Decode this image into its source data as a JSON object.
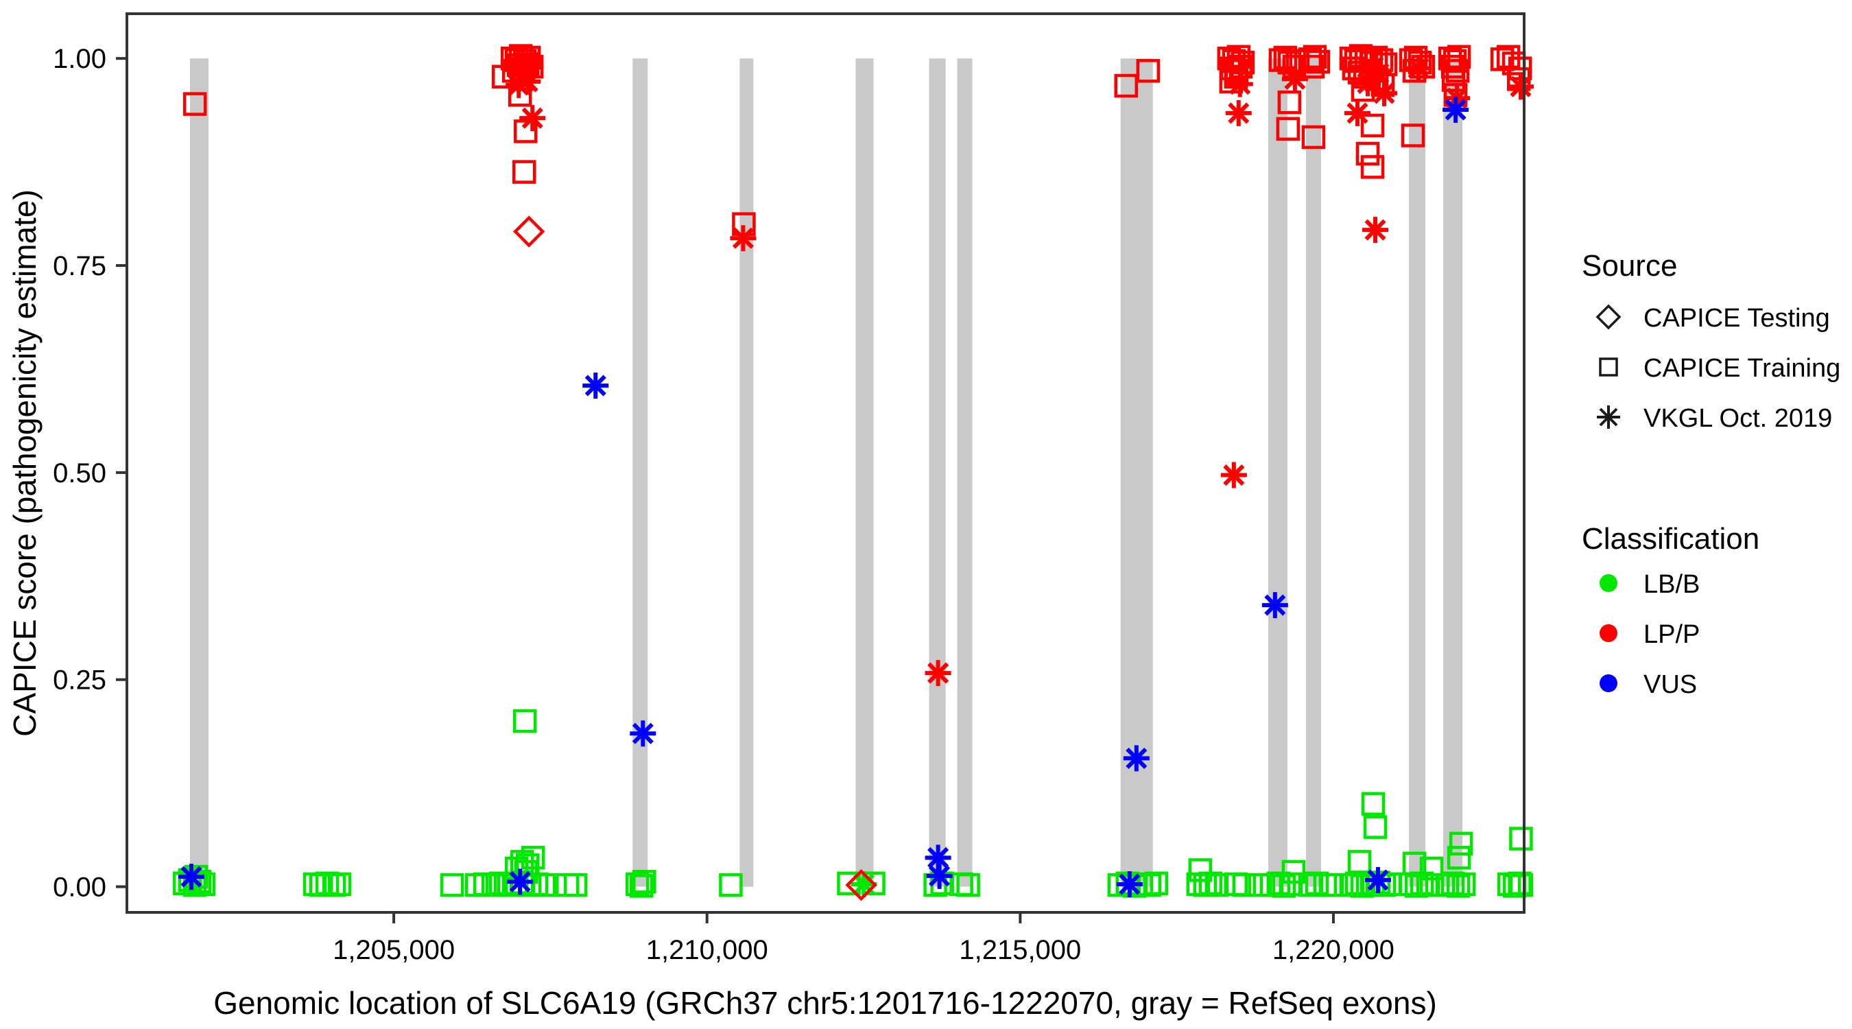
{
  "axes": {
    "x": {
      "title": "Genomic location of SLC6A19 (GRCh37 chr5:1201716-1222070, gray = RefSeq exons)",
      "domain": [
        1200739,
        1223045
      ],
      "ticks": [
        {
          "value": 1205000,
          "label": "1,205,000"
        },
        {
          "value": 1210000,
          "label": "1,210,000"
        },
        {
          "value": 1215000,
          "label": "1,215,000"
        },
        {
          "value": 1220000,
          "label": "1,220,000"
        }
      ]
    },
    "y": {
      "title": "CAPICE score (pathogenicity estimate)",
      "domain": [
        -0.031,
        1.054
      ],
      "ticks": [
        {
          "value": 0.0,
          "label": "0.00"
        },
        {
          "value": 0.25,
          "label": "0.25"
        },
        {
          "value": 0.5,
          "label": "0.50"
        },
        {
          "value": 0.75,
          "label": "0.75"
        },
        {
          "value": 1.0,
          "label": "1.00"
        }
      ]
    }
  },
  "legend": {
    "source": {
      "title": "Source",
      "items": [
        {
          "key": "testing",
          "label": "CAPICE Testing",
          "shape": "diamond"
        },
        {
          "key": "training",
          "label": "CAPICE Training",
          "shape": "square"
        },
        {
          "key": "vkgl",
          "label": "VKGL Oct. 2019",
          "shape": "asterisk"
        }
      ]
    },
    "classification": {
      "title": "Classification",
      "items": [
        {
          "key": "LB_B",
          "label": "LB/B",
          "color": "#00e800"
        },
        {
          "key": "LP_P",
          "label": "LP/P",
          "color": "#ff0000"
        },
        {
          "key": "VUS",
          "label": "VUS",
          "color": "#0000ff"
        }
      ]
    }
  },
  "colors": {
    "exon": "#c9c9c9",
    "panel_border": "#333333",
    "tick_text": "#4d4d4d"
  },
  "chart_data": {
    "type": "scatter",
    "title": "",
    "xlabel": "Genomic location of SLC6A19 (GRCh37 chr5:1201716-1222070, gray = RefSeq exons)",
    "ylabel": "CAPICE score (pathogenicity estimate)",
    "x_domain": [
      1200739,
      1223045
    ],
    "y_domain": [
      -0.031,
      1.054
    ],
    "grid": false,
    "legend_position": "right",
    "exons": [
      [
        1201746,
        1202042
      ],
      [
        1208813,
        1209054
      ],
      [
        1210522,
        1210741
      ],
      [
        1212374,
        1212659
      ],
      [
        1213546,
        1213809
      ],
      [
        1213995,
        1214236
      ],
      [
        1216603,
        1217118
      ],
      [
        1218959,
        1219266
      ],
      [
        1219562,
        1219803
      ],
      [
        1221205,
        1221468
      ],
      [
        1221753,
        1222060
      ]
    ],
    "columns": [
      "pos",
      "score",
      "source",
      "classification"
    ],
    "points": [
      [
        1201825,
        0.945,
        "training",
        "LP_P"
      ],
      [
        1201768,
        0.012,
        "vkgl",
        "VUS"
      ],
      [
        1201660,
        0.004,
        "training",
        "LB_B"
      ],
      [
        1201745,
        0.008,
        "training",
        "LB_B"
      ],
      [
        1201823,
        0.002,
        "training",
        "LB_B"
      ],
      [
        1201900,
        0.006,
        "training",
        "LB_B"
      ],
      [
        1201965,
        0.003,
        "training",
        "LB_B"
      ],
      [
        1201845,
        0.012,
        "training",
        "LB_B"
      ],
      [
        1203740,
        0.003,
        "training",
        "LB_B"
      ],
      [
        1203839,
        0.002,
        "training",
        "LB_B"
      ],
      [
        1203937,
        0.004,
        "training",
        "LB_B"
      ],
      [
        1204047,
        0.002,
        "training",
        "LB_B"
      ],
      [
        1204134,
        0.003,
        "training",
        "LB_B"
      ],
      [
        1205931,
        0.002,
        "training",
        "LB_B"
      ],
      [
        1206326,
        0.002,
        "training",
        "LB_B"
      ],
      [
        1206457,
        0.003,
        "training",
        "LB_B"
      ],
      [
        1206589,
        0.002,
        "training",
        "LB_B"
      ],
      [
        1206709,
        0.004,
        "training",
        "LB_B"
      ],
      [
        1206841,
        0.002,
        "training",
        "LB_B"
      ],
      [
        1206961,
        0.003,
        "training",
        "LB_B"
      ],
      [
        1207049,
        0.005,
        "training",
        "LB_B"
      ],
      [
        1207169,
        0.002,
        "training",
        "LB_B"
      ],
      [
        1207279,
        0.003,
        "training",
        "LB_B"
      ],
      [
        1207399,
        0.002,
        "training",
        "LB_B"
      ],
      [
        1207772,
        0.002,
        "training",
        "LB_B"
      ],
      [
        1207903,
        0.002,
        "training",
        "LB_B"
      ],
      [
        1206961,
        0.022,
        "training",
        "LB_B"
      ],
      [
        1207049,
        0.03,
        "training",
        "LB_B"
      ],
      [
        1207137,
        0.026,
        "training",
        "LB_B"
      ],
      [
        1207224,
        0.035,
        "training",
        "LB_B"
      ],
      [
        1207115,
        0.018,
        "training",
        "LB_B"
      ],
      [
        1207016,
        0.006,
        "vkgl",
        "VUS"
      ],
      [
        1207093,
        0.2,
        "training",
        "LB_B"
      ],
      [
        1206895,
        1.0,
        "training",
        "LP_P"
      ],
      [
        1206961,
        0.998,
        "training",
        "LP_P"
      ],
      [
        1207027,
        1.003,
        "training",
        "LP_P"
      ],
      [
        1207093,
        0.997,
        "training",
        "LP_P"
      ],
      [
        1207158,
        1.001,
        "training",
        "LP_P"
      ],
      [
        1206994,
        0.992,
        "training",
        "LP_P"
      ],
      [
        1207071,
        0.988,
        "training",
        "LP_P"
      ],
      [
        1207137,
        0.993,
        "training",
        "LP_P"
      ],
      [
        1206917,
        0.985,
        "training",
        "LP_P"
      ],
      [
        1207202,
        0.99,
        "training",
        "LP_P"
      ],
      [
        1206753,
        0.978,
        "training",
        "LP_P"
      ],
      [
        1207038,
        0.975,
        "training",
        "LP_P"
      ],
      [
        1207071,
        0.983,
        "vkgl",
        "LP_P"
      ],
      [
        1207137,
        0.972,
        "vkgl",
        "LP_P"
      ],
      [
        1206994,
        0.968,
        "vkgl",
        "LP_P"
      ],
      [
        1207016,
        0.956,
        "training",
        "LP_P"
      ],
      [
        1207213,
        0.928,
        "vkgl",
        "LP_P"
      ],
      [
        1207104,
        0.912,
        "training",
        "LP_P"
      ],
      [
        1207082,
        0.863,
        "training",
        "LP_P"
      ],
      [
        1207158,
        0.791,
        "testing",
        "LP_P"
      ],
      [
        1208221,
        0.605,
        "vkgl",
        "VUS"
      ],
      [
        1208977,
        0.185,
        "vkgl",
        "VUS"
      ],
      [
        1208889,
        0.003,
        "training",
        "LB_B"
      ],
      [
        1208999,
        0.006,
        "training",
        "LB_B"
      ],
      [
        1208955,
        0.001,
        "training",
        "LB_B"
      ],
      [
        1210380,
        0.002,
        "training",
        "LB_B"
      ],
      [
        1210588,
        0.8,
        "training",
        "LP_P"
      ],
      [
        1210577,
        0.783,
        "vkgl",
        "LP_P"
      ],
      [
        1212462,
        0.002,
        "testing",
        "LP_P"
      ],
      [
        1212505,
        0.003,
        "vkgl",
        "LB_B"
      ],
      [
        1212264,
        0.004,
        "training",
        "LB_B"
      ],
      [
        1212659,
        0.004,
        "training",
        "LB_B"
      ],
      [
        1213689,
        0.035,
        "vkgl",
        "VUS"
      ],
      [
        1213711,
        0.013,
        "vkgl",
        "VUS"
      ],
      [
        1213689,
        0.258,
        "vkgl",
        "LP_P"
      ],
      [
        1213645,
        0.002,
        "training",
        "LB_B"
      ],
      [
        1213755,
        0.004,
        "training",
        "LB_B"
      ],
      [
        1214061,
        0.003,
        "training",
        "LB_B"
      ],
      [
        1214171,
        0.002,
        "training",
        "LB_B"
      ],
      [
        1216691,
        0.967,
        "training",
        "LP_P"
      ],
      [
        1217042,
        0.985,
        "training",
        "LP_P"
      ],
      [
        1216856,
        0.155,
        "vkgl",
        "VUS"
      ],
      [
        1216746,
        0.003,
        "vkgl",
        "VUS"
      ],
      [
        1216582,
        0.002,
        "training",
        "LB_B"
      ],
      [
        1216713,
        0.004,
        "training",
        "LB_B"
      ],
      [
        1216823,
        0.001,
        "training",
        "LB_B"
      ],
      [
        1216932,
        0.003,
        "training",
        "LB_B"
      ],
      [
        1217064,
        0.002,
        "training",
        "LB_B"
      ],
      [
        1217173,
        0.004,
        "training",
        "LB_B"
      ],
      [
        1218334,
        1.0,
        "training",
        "LP_P"
      ],
      [
        1218411,
        0.997,
        "training",
        "LP_P"
      ],
      [
        1218487,
        1.002,
        "training",
        "LP_P"
      ],
      [
        1218553,
        0.995,
        "training",
        "LP_P"
      ],
      [
        1218378,
        0.988,
        "training",
        "LP_P"
      ],
      [
        1218454,
        0.985,
        "training",
        "LP_P"
      ],
      [
        1218520,
        0.99,
        "training",
        "LP_P"
      ],
      [
        1218443,
        0.978,
        "training",
        "LP_P"
      ],
      [
        1218367,
        0.972,
        "training",
        "LP_P"
      ],
      [
        1218509,
        0.969,
        "vkgl",
        "LP_P"
      ],
      [
        1218487,
        0.934,
        "vkgl",
        "LP_P"
      ],
      [
        1218411,
        0.497,
        "vkgl",
        "LP_P"
      ],
      [
        1217874,
        0.02,
        "training",
        "LB_B"
      ],
      [
        1217841,
        0.003,
        "training",
        "LB_B"
      ],
      [
        1217951,
        0.002,
        "training",
        "LB_B"
      ],
      [
        1218038,
        0.004,
        "training",
        "LB_B"
      ],
      [
        1218137,
        0.002,
        "training",
        "LB_B"
      ],
      [
        1218443,
        0.003,
        "training",
        "LB_B"
      ],
      [
        1218575,
        0.002,
        "training",
        "LB_B"
      ],
      [
        1218827,
        0.002,
        "training",
        "LB_B"
      ],
      [
        1219156,
        0.998,
        "training",
        "LP_P"
      ],
      [
        1219232,
        1.001,
        "training",
        "LP_P"
      ],
      [
        1219298,
        0.995,
        "training",
        "LP_P"
      ],
      [
        1219375,
        0.99,
        "training",
        "LP_P"
      ],
      [
        1219429,
        0.997,
        "training",
        "LP_P"
      ],
      [
        1219386,
        0.975,
        "vkgl",
        "LP_P"
      ],
      [
        1219298,
        0.947,
        "training",
        "LP_P"
      ],
      [
        1219276,
        0.915,
        "training",
        "LP_P"
      ],
      [
        1219068,
        0.34,
        "vkgl",
        "VUS"
      ],
      [
        1219013,
        0.002,
        "training",
        "LB_B"
      ],
      [
        1219123,
        0.004,
        "training",
        "LB_B"
      ],
      [
        1219210,
        0.001,
        "training",
        "LB_B"
      ],
      [
        1219320,
        0.003,
        "training",
        "LB_B"
      ],
      [
        1219364,
        0.018,
        "training",
        "LB_B"
      ],
      [
        1219627,
        0.999,
        "training",
        "LP_P"
      ],
      [
        1219704,
        1.002,
        "training",
        "LP_P"
      ],
      [
        1219758,
        0.996,
        "training",
        "LP_P"
      ],
      [
        1219671,
        0.99,
        "training",
        "LP_P"
      ],
      [
        1219682,
        0.905,
        "training",
        "LP_P"
      ],
      [
        1219627,
        0.002,
        "training",
        "LB_B"
      ],
      [
        1219737,
        0.004,
        "training",
        "LB_B"
      ],
      [
        1219868,
        0.002,
        "training",
        "LB_B"
      ],
      [
        1219978,
        0.002,
        "training",
        "LB_B"
      ],
      [
        1220285,
        1.0,
        "training",
        "LP_P"
      ],
      [
        1220362,
        0.997,
        "training",
        "LP_P"
      ],
      [
        1220438,
        1.003,
        "training",
        "LP_P"
      ],
      [
        1220526,
        0.999,
        "training",
        "LP_P"
      ],
      [
        1220603,
        0.995,
        "training",
        "LP_P"
      ],
      [
        1220680,
        1.001,
        "training",
        "LP_P"
      ],
      [
        1220767,
        0.998,
        "training",
        "LP_P"
      ],
      [
        1220833,
        0.993,
        "training",
        "LP_P"
      ],
      [
        1220329,
        0.988,
        "training",
        "LP_P"
      ],
      [
        1220417,
        0.983,
        "training",
        "LP_P"
      ],
      [
        1220504,
        0.978,
        "training",
        "LP_P"
      ],
      [
        1220592,
        0.985,
        "training",
        "LP_P"
      ],
      [
        1220691,
        0.975,
        "training",
        "LP_P"
      ],
      [
        1220789,
        0.968,
        "training",
        "LP_P"
      ],
      [
        1220471,
        0.962,
        "training",
        "LP_P"
      ],
      [
        1220636,
        0.99,
        "vkgl",
        "LP_P"
      ],
      [
        1220723,
        0.982,
        "vkgl",
        "LP_P"
      ],
      [
        1220548,
        0.97,
        "vkgl",
        "LP_P"
      ],
      [
        1220811,
        0.958,
        "vkgl",
        "LP_P"
      ],
      [
        1220384,
        0.934,
        "vkgl",
        "LP_P"
      ],
      [
        1220625,
        0.919,
        "training",
        "LP_P"
      ],
      [
        1220548,
        0.885,
        "training",
        "LP_P"
      ],
      [
        1220625,
        0.869,
        "training",
        "LP_P"
      ],
      [
        1220669,
        0.793,
        "vkgl",
        "LP_P"
      ],
      [
        1220285,
        0.002,
        "training",
        "LB_B"
      ],
      [
        1220373,
        0.004,
        "training",
        "LB_B"
      ],
      [
        1220460,
        0.001,
        "training",
        "LB_B"
      ],
      [
        1220548,
        0.003,
        "training",
        "LB_B"
      ],
      [
        1220636,
        0.002,
        "training",
        "LB_B"
      ],
      [
        1220723,
        0.005,
        "training",
        "LB_B"
      ],
      [
        1220811,
        0.002,
        "training",
        "LB_B"
      ],
      [
        1220899,
        0.003,
        "training",
        "LB_B"
      ],
      [
        1220636,
        0.1,
        "training",
        "LB_B"
      ],
      [
        1220669,
        0.072,
        "training",
        "LB_B"
      ],
      [
        1220417,
        0.03,
        "training",
        "LB_B"
      ],
      [
        1220712,
        0.008,
        "vkgl",
        "VUS"
      ],
      [
        1221238,
        0.998,
        "training",
        "LP_P"
      ],
      [
        1221315,
        1.001,
        "training",
        "LP_P"
      ],
      [
        1221381,
        0.995,
        "training",
        "LP_P"
      ],
      [
        1221435,
        0.99,
        "training",
        "LP_P"
      ],
      [
        1221293,
        0.985,
        "training",
        "LP_P"
      ],
      [
        1221359,
        0.988,
        "vkgl",
        "LP_P"
      ],
      [
        1221271,
        0.907,
        "training",
        "LP_P"
      ],
      [
        1221238,
        0.003,
        "training",
        "LB_B"
      ],
      [
        1221326,
        0.001,
        "training",
        "LB_B"
      ],
      [
        1221414,
        0.004,
        "training",
        "LB_B"
      ],
      [
        1221512,
        0.002,
        "training",
        "LB_B"
      ],
      [
        1221293,
        0.028,
        "training",
        "LB_B"
      ],
      [
        1221567,
        0.022,
        "training",
        "LB_B"
      ],
      [
        1221863,
        1.0,
        "training",
        "LP_P"
      ],
      [
        1221940,
        0.997,
        "training",
        "LP_P"
      ],
      [
        1222006,
        1.002,
        "training",
        "LP_P"
      ],
      [
        1221907,
        0.99,
        "training",
        "LP_P"
      ],
      [
        1221984,
        0.985,
        "training",
        "LP_P"
      ],
      [
        1221918,
        0.974,
        "training",
        "LP_P"
      ],
      [
        1221951,
        0.956,
        "training",
        "LP_P"
      ],
      [
        1221973,
        0.952,
        "vkgl",
        "LP_P"
      ],
      [
        1221951,
        0.938,
        "vkgl",
        "VUS"
      ],
      [
        1221819,
        0.002,
        "training",
        "LB_B"
      ],
      [
        1221907,
        0.004,
        "training",
        "LB_B"
      ],
      [
        1221995,
        0.001,
        "training",
        "LB_B"
      ],
      [
        1222083,
        0.003,
        "training",
        "LB_B"
      ],
      [
        1222039,
        0.052,
        "training",
        "LB_B"
      ],
      [
        1222006,
        0.035,
        "training",
        "LB_B"
      ],
      [
        1222696,
        0.999,
        "training",
        "LP_P"
      ],
      [
        1222795,
        1.002,
        "training",
        "LP_P"
      ],
      [
        1222882,
        0.994,
        "training",
        "LP_P"
      ],
      [
        1222981,
        0.988,
        "training",
        "LP_P"
      ],
      [
        1222960,
        0.975,
        "training",
        "LP_P"
      ],
      [
        1222990,
        0.966,
        "vkgl",
        "LP_P"
      ],
      [
        1222806,
        0.003,
        "training",
        "LB_B"
      ],
      [
        1222893,
        0.001,
        "training",
        "LB_B"
      ],
      [
        1222975,
        0.004,
        "training",
        "LB_B"
      ],
      [
        1223000,
        0.002,
        "training",
        "LB_B"
      ],
      [
        1222995,
        0.058,
        "training",
        "LB_B"
      ]
    ]
  }
}
